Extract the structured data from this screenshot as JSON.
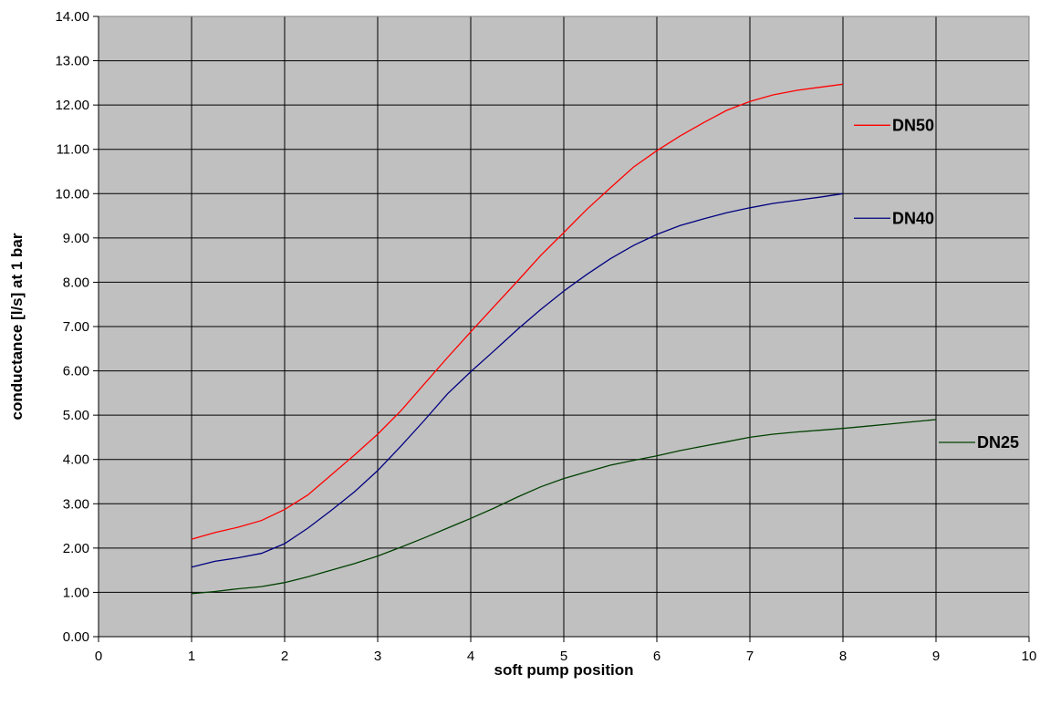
{
  "chart_data": {
    "type": "line",
    "title": "",
    "xlabel": "soft pump position",
    "ylabel": "conductance [l/s] at 1 bar",
    "xlim": [
      0,
      10
    ],
    "ylim": [
      0,
      14
    ],
    "x_ticks": [
      "0",
      "1",
      "2",
      "3",
      "4",
      "5",
      "6",
      "7",
      "8",
      "9",
      "10"
    ],
    "y_ticks": [
      "0.00",
      "1.00",
      "2.00",
      "3.00",
      "4.00",
      "5.00",
      "6.00",
      "7.00",
      "8.00",
      "9.00",
      "10.00",
      "11.00",
      "12.00",
      "13.00",
      "14.00"
    ],
    "grid": true,
    "plot_background": "#c0c0c0",
    "series": [
      {
        "name": "DN50",
        "color": "#ff0000",
        "x": [
          1,
          1.25,
          1.5,
          1.75,
          2,
          2.25,
          2.5,
          2.75,
          3,
          3.25,
          3.5,
          3.75,
          4,
          4.25,
          4.5,
          4.75,
          5,
          5.25,
          5.5,
          5.75,
          6,
          6.25,
          6.5,
          6.75,
          7,
          7.25,
          7.5,
          7.75,
          8
        ],
        "y": [
          2.2,
          2.35,
          2.47,
          2.62,
          2.87,
          3.2,
          3.65,
          4.1,
          4.57,
          5.1,
          5.7,
          6.3,
          6.88,
          7.45,
          8.02,
          8.6,
          9.12,
          9.65,
          10.13,
          10.6,
          10.97,
          11.3,
          11.6,
          11.88,
          12.08,
          12.23,
          12.33,
          12.4,
          12.47
        ]
      },
      {
        "name": "DN40",
        "color": "#000080",
        "x": [
          1,
          1.25,
          1.5,
          1.75,
          2,
          2.25,
          2.5,
          2.75,
          3,
          3.25,
          3.5,
          3.75,
          4,
          4.25,
          4.5,
          4.75,
          5,
          5.25,
          5.5,
          5.75,
          6,
          6.25,
          6.5,
          6.75,
          7,
          7.25,
          7.5,
          7.75,
          8
        ],
        "y": [
          1.57,
          1.7,
          1.78,
          1.88,
          2.1,
          2.45,
          2.85,
          3.27,
          3.75,
          4.3,
          4.88,
          5.48,
          5.98,
          6.45,
          6.93,
          7.38,
          7.8,
          8.18,
          8.53,
          8.83,
          9.08,
          9.28,
          9.43,
          9.57,
          9.68,
          9.78,
          9.85,
          9.92,
          10.0
        ]
      },
      {
        "name": "DN25",
        "color": "#004000",
        "x": [
          1,
          1.25,
          1.5,
          1.75,
          2,
          2.25,
          2.5,
          2.75,
          3,
          3.25,
          3.5,
          3.75,
          4,
          4.25,
          4.5,
          4.75,
          5,
          5.25,
          5.5,
          5.75,
          6,
          6.25,
          6.5,
          6.75,
          7,
          7.25,
          7.5,
          7.75,
          8,
          8.25,
          8.5,
          8.75,
          9
        ],
        "y": [
          0.97,
          1.02,
          1.08,
          1.13,
          1.22,
          1.35,
          1.5,
          1.65,
          1.82,
          2.02,
          2.23,
          2.45,
          2.67,
          2.9,
          3.15,
          3.38,
          3.57,
          3.72,
          3.87,
          3.98,
          4.08,
          4.2,
          4.3,
          4.4,
          4.5,
          4.57,
          4.62,
          4.66,
          4.7,
          4.75,
          4.8,
          4.85,
          4.9
        ]
      }
    ]
  }
}
